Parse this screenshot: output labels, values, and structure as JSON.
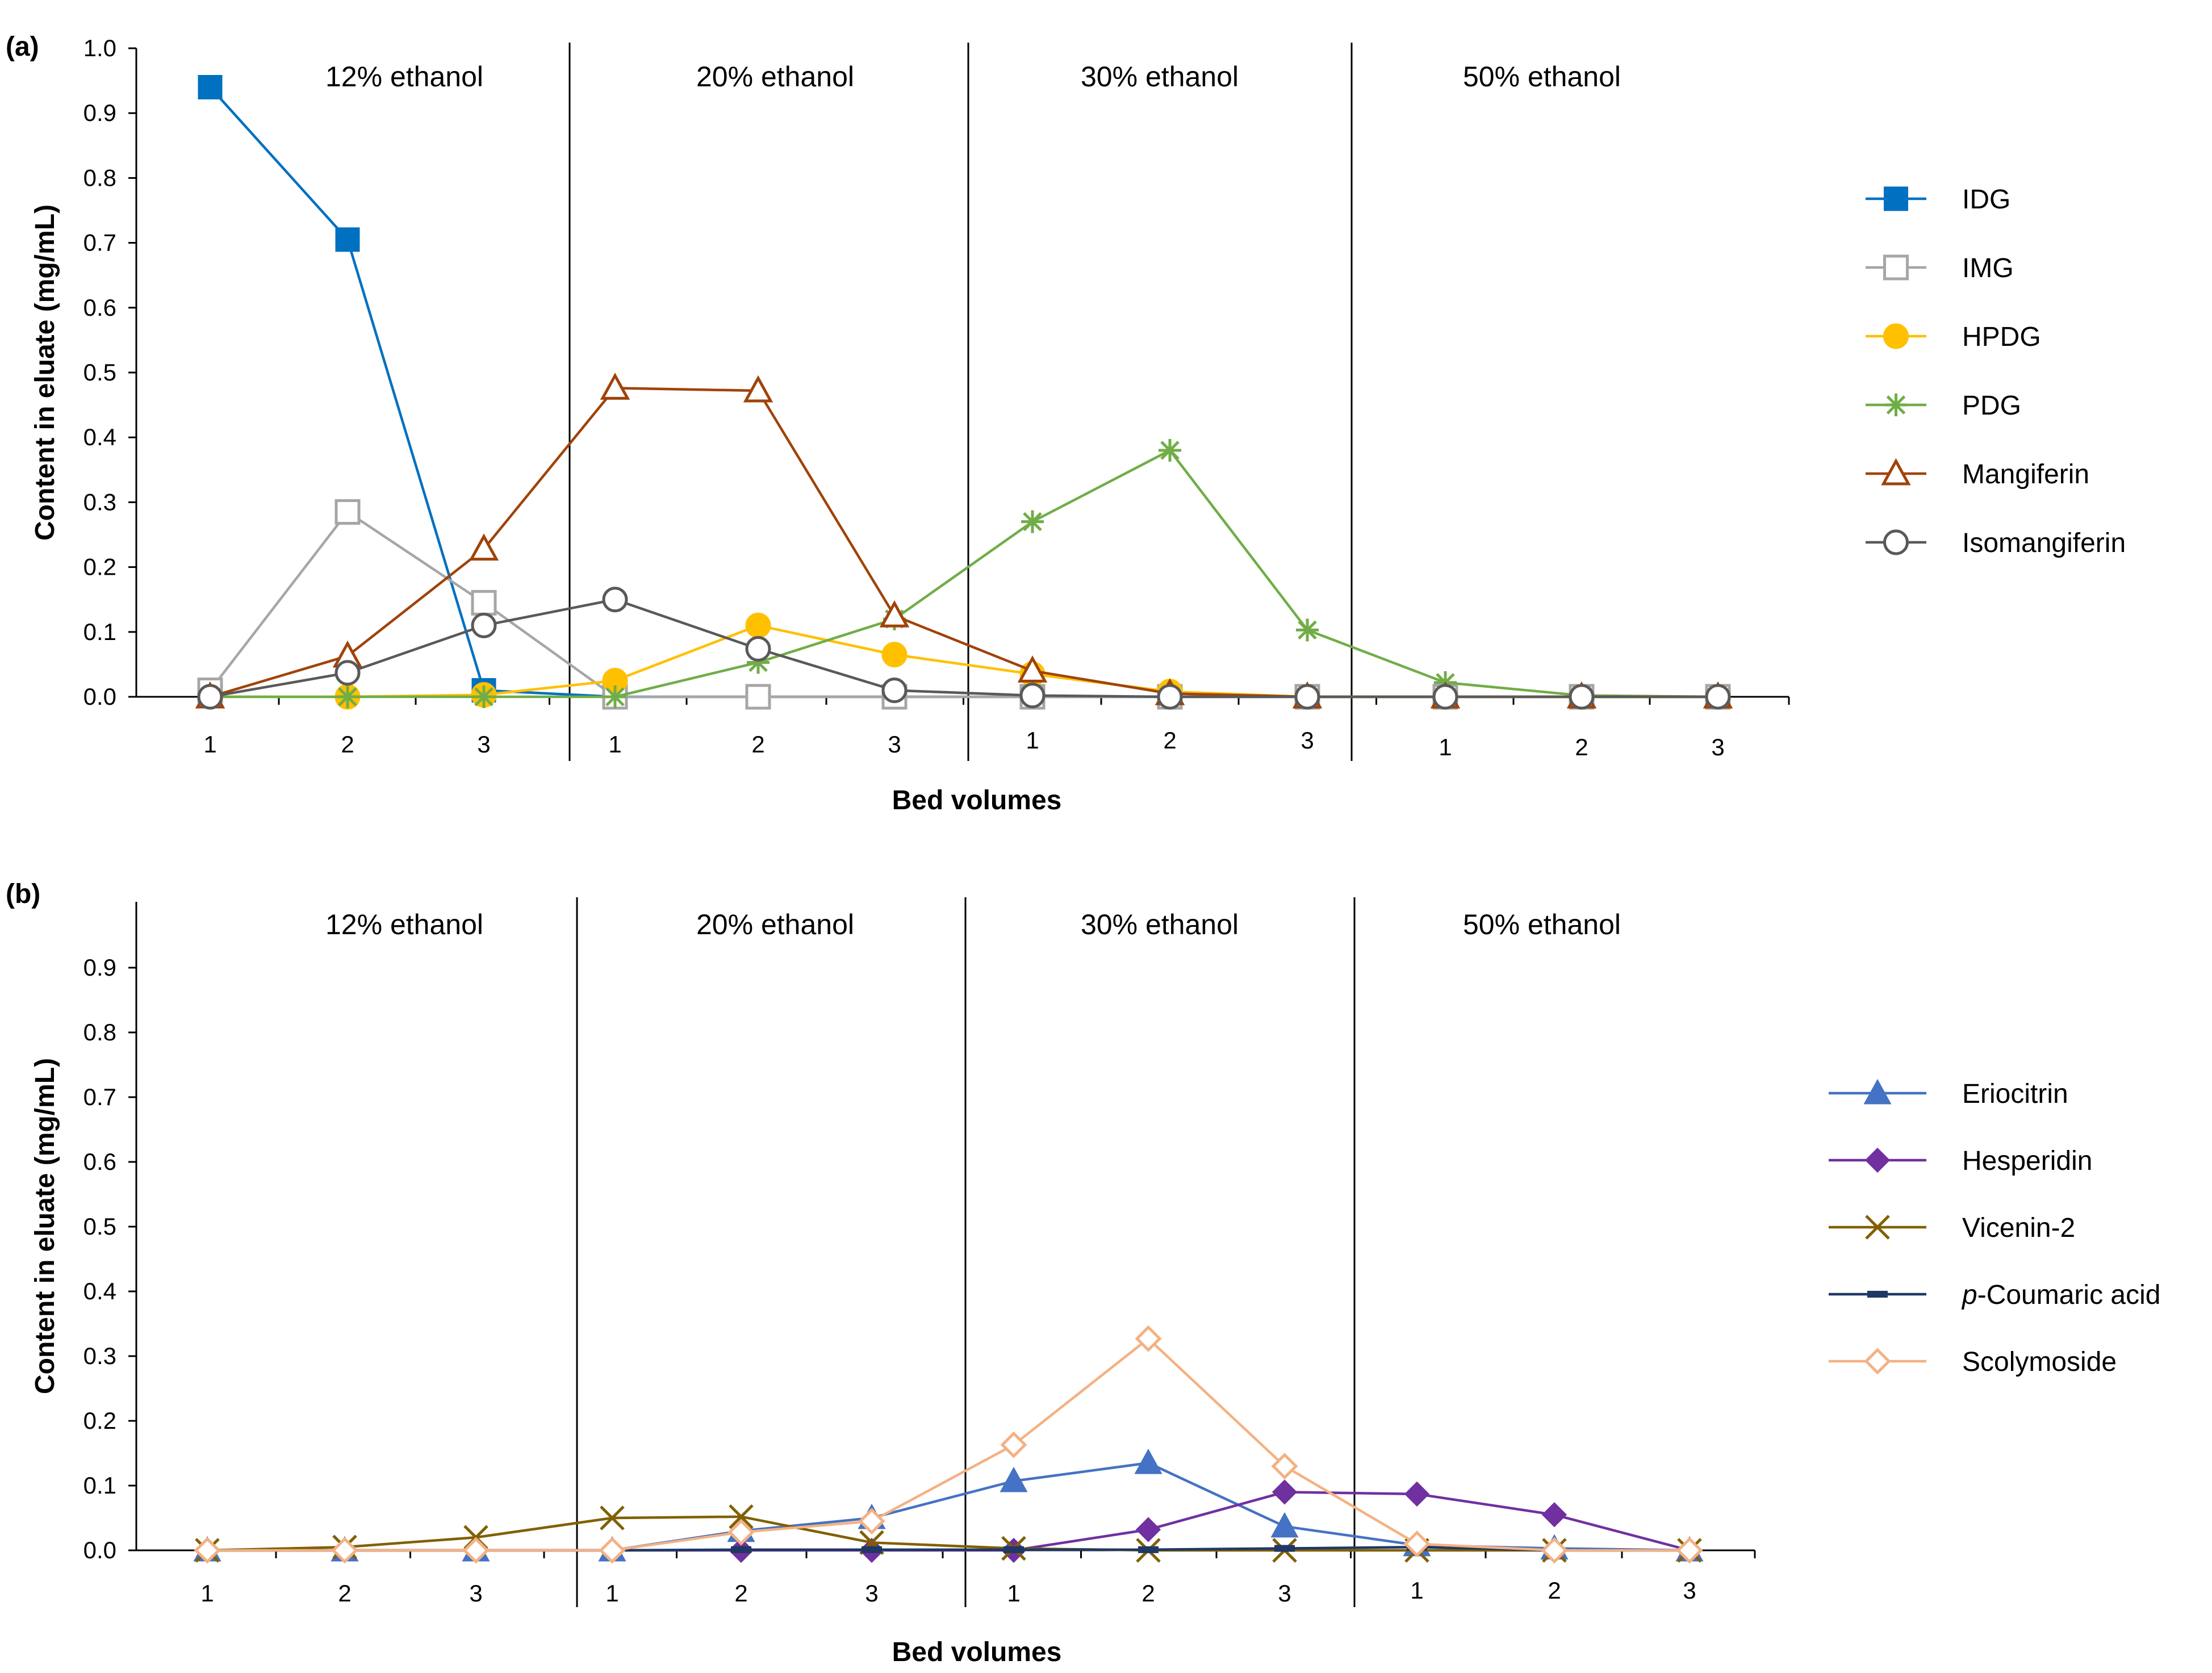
{
  "chart_data": [
    {
      "type": "line",
      "panel_label": "(a)",
      "ylabel": "Content in eluate (mg/mL)",
      "xlabel": "Bed volumes",
      "ylim": [
        0,
        1.0
      ],
      "yticks": [
        "0.0",
        "0.1",
        "0.2",
        "0.3",
        "0.4",
        "0.5",
        "0.6",
        "0.7",
        "0.8",
        "0.9",
        "1.0"
      ],
      "categories": [
        "1",
        "2",
        "3",
        "1",
        "2",
        "3",
        "1",
        "2",
        "3",
        "1",
        "2",
        "3"
      ],
      "sections": [
        "12% ethanol",
        "20% ethanol",
        "30% ethanol",
        "50% ethanol"
      ],
      "legend_position": "right",
      "series": [
        {
          "name": "IDG",
          "color": "#0070C0",
          "marker": "square-filled",
          "values": [
            0.94,
            0.705,
            0.01,
            0.0,
            0.0,
            0.0,
            0.0,
            0.0,
            0.0,
            0.0,
            0.0,
            0.0
          ]
        },
        {
          "name": "IMG",
          "color": "#A6A6A6",
          "marker": "square-open",
          "values": [
            0.01,
            0.285,
            0.145,
            0.0,
            0.0,
            0.0,
            0.0,
            0.0,
            0.0,
            0.0,
            0.0,
            0.0
          ]
        },
        {
          "name": "HPDG",
          "color": "#FFC000",
          "marker": "circle-filled",
          "values": [
            0.0,
            0.0,
            0.003,
            0.025,
            0.11,
            0.065,
            0.035,
            0.008,
            0.0,
            0.0,
            0.0,
            0.0
          ]
        },
        {
          "name": "PDG",
          "color": "#70AD47",
          "marker": "star",
          "values": [
            0.0,
            0.0,
            0.0,
            0.0,
            0.053,
            0.12,
            0.27,
            0.38,
            0.103,
            0.022,
            0.002,
            0.0
          ]
        },
        {
          "name": "Mangiferin",
          "color": "#A0430A",
          "marker": "triangle-open",
          "values": [
            0.0,
            0.063,
            0.228,
            0.476,
            0.472,
            0.125,
            0.04,
            0.005,
            0.0,
            0.0,
            0.0,
            0.0
          ]
        },
        {
          "name": "Isomangiferin",
          "color": "#595959",
          "marker": "circle-open",
          "values": [
            0.0,
            0.037,
            0.11,
            0.15,
            0.074,
            0.01,
            0.002,
            0.0,
            0.0,
            0.0,
            0.0,
            0.0
          ]
        }
      ]
    },
    {
      "type": "line",
      "panel_label": "(b)",
      "ylabel": "Content in eluate (mg/mL)",
      "xlabel": "Bed volumes",
      "ylim": [
        0,
        1.0
      ],
      "yticks": [
        "0.0",
        "0.1",
        "0.2",
        "0.3",
        "0.4",
        "0.5",
        "0.6",
        "0.7",
        "0.8",
        "0.9"
      ],
      "categories": [
        "1",
        "2",
        "3",
        "1",
        "2",
        "3",
        "1",
        "2",
        "3",
        "1",
        "2",
        "3"
      ],
      "sections": [
        "12% ethanol",
        "20% ethanol",
        "30% ethanol",
        "50% ethanol"
      ],
      "legend_position": "right",
      "series": [
        {
          "name": "Eriocitrin",
          "color": "#4472C4",
          "marker": "triangle-filled",
          "values": [
            0.0,
            0.0,
            0.0,
            0.0,
            0.03,
            0.05,
            0.107,
            0.135,
            0.037,
            0.008,
            0.003,
            0.0
          ]
        },
        {
          "name": "Hesperidin",
          "color": "#7030A0",
          "marker": "diamond-filled",
          "values": [
            0.0,
            0.0,
            0.0,
            0.0,
            0.0,
            0.0,
            0.0,
            0.032,
            0.09,
            0.087,
            0.055,
            0.0
          ]
        },
        {
          "name": "Vicenin-2",
          "color": "#806000",
          "marker": "x",
          "values": [
            0.0,
            0.005,
            0.02,
            0.05,
            0.052,
            0.012,
            0.003,
            0.0,
            0.0,
            0.0,
            0.0,
            0.0
          ]
        },
        {
          "name": "p-Coumaric acid",
          "name_prefix": "p",
          "name_rest": "-Coumaric acid",
          "color": "#1F3864",
          "marker": "dash",
          "values": [
            0.0,
            0.0,
            0.0,
            0.0,
            0.001,
            0.001,
            0.001,
            0.001,
            0.003,
            0.005,
            0.0,
            0.0
          ]
        },
        {
          "name": "Scolymoside",
          "color": "#F4B183",
          "marker": "diamond-open",
          "values": [
            0.0,
            0.0,
            0.0,
            0.0,
            0.028,
            0.045,
            0.163,
            0.327,
            0.13,
            0.01,
            0.0,
            0.0
          ]
        }
      ]
    }
  ]
}
